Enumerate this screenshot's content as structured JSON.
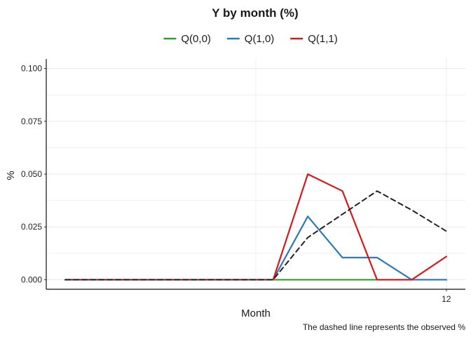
{
  "chart_data": {
    "type": "line",
    "title": "Y by month (%)",
    "xlabel": "Month",
    "ylabel": "%",
    "caption": "The dashed line represents the observed %",
    "x": [
      1,
      2,
      3,
      4,
      5,
      6,
      7,
      8,
      9,
      10,
      11,
      12
    ],
    "xlim": [
      0.45,
      12.55
    ],
    "xticks": [
      12
    ],
    "ylim": [
      -0.0045,
      0.1045
    ],
    "yticks": [
      0.0,
      0.025,
      0.05,
      0.075,
      0.1
    ],
    "ytick_labels": [
      "0.000",
      "0.025",
      "0.050",
      "0.075",
      "0.100"
    ],
    "legend_position": "top",
    "grid": true,
    "series": [
      {
        "name": "Q(0,0)",
        "color": "#33a02c",
        "dashed": false,
        "values": [
          0,
          0,
          0,
          0,
          0,
          0,
          0,
          0,
          0,
          0,
          0,
          0
        ]
      },
      {
        "name": "Q(1,0)",
        "color": "#2c7bb6",
        "dashed": false,
        "values": [
          0,
          0,
          0,
          0,
          0,
          0,
          0,
          0.03,
          0.0105,
          0.0105,
          0,
          0
        ]
      },
      {
        "name": "Q(1,1)",
        "color": "#d7191c",
        "dashed": false,
        "values": [
          0,
          0,
          0,
          0,
          0,
          0,
          0,
          0.05,
          0.042,
          0,
          0,
          0.011
        ]
      },
      {
        "name": "",
        "color": "#222222",
        "dashed": true,
        "values": [
          0,
          0,
          0,
          0,
          0,
          0,
          0,
          0.02,
          0.031,
          0.042,
          0.033,
          0.023
        ]
      }
    ]
  }
}
